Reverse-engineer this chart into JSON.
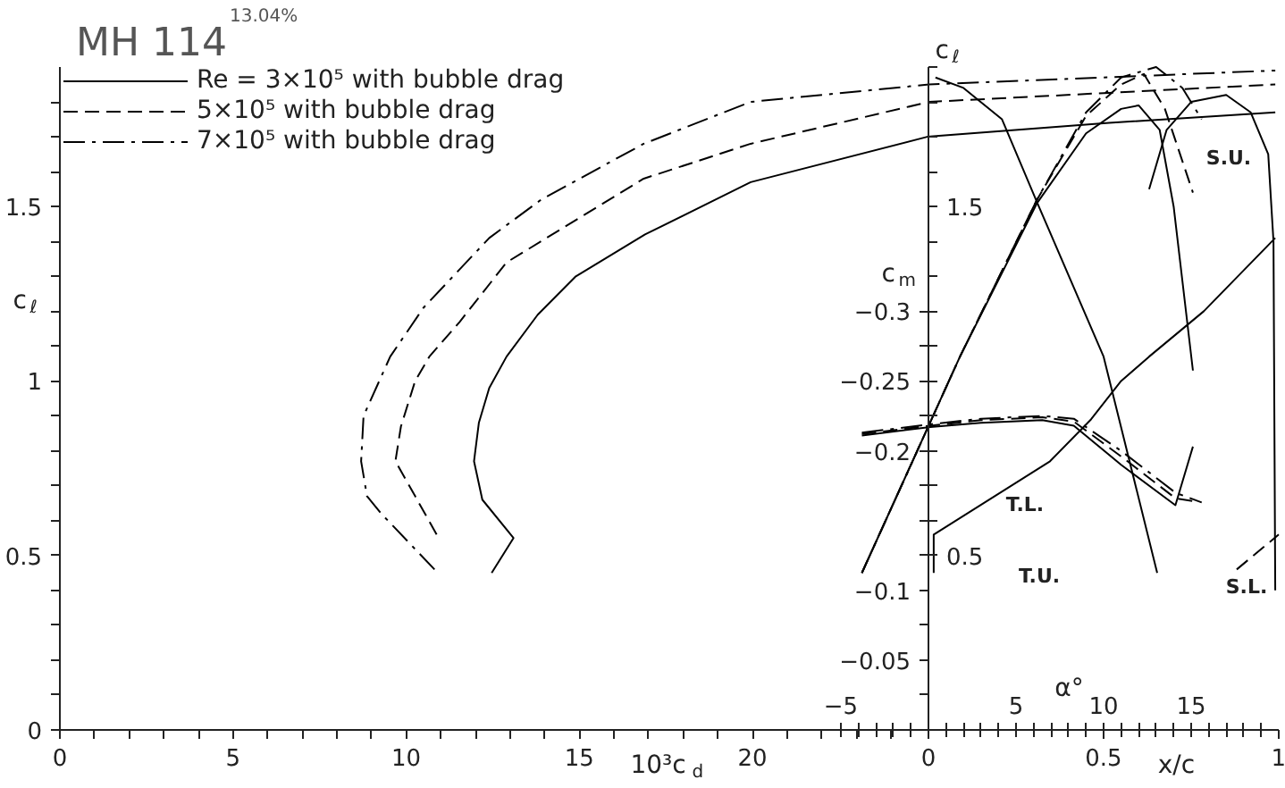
{
  "chart_data": [
    {
      "type": "line",
      "title": "MH 114",
      "subtitle": "13.04%",
      "xlabel": "10³c$_{d}$",
      "ylabel": "c$_{ℓ}$",
      "legend": "top left",
      "xlim": [
        0,
        35.2
      ],
      "xticks": [
        0,
        {
          "value": 1,
          "label": null
        },
        {
          "value": 2,
          "label": null
        },
        {
          "value": 3,
          "label": null
        },
        {
          "value": 4,
          "label": null
        },
        5,
        {
          "value": 6,
          "label": null
        },
        {
          "value": 7,
          "label": null
        },
        {
          "value": 8,
          "label": null
        },
        {
          "value": 9,
          "label": null
        },
        10,
        {
          "value": 11,
          "label": null
        },
        {
          "value": 12,
          "label": null
        },
        {
          "value": 13,
          "label": null
        },
        {
          "value": 14,
          "label": null
        },
        15,
        {
          "value": 16,
          "label": null
        },
        {
          "value": 17,
          "label": null
        },
        {
          "value": 18,
          "label": null
        },
        {
          "value": 19,
          "label": null
        },
        20,
        {
          "value": 21,
          "label": null
        },
        {
          "value": 22,
          "label": null
        },
        {
          "value": 23,
          "label": null
        },
        {
          "value": 24,
          "label": null
        }
      ],
      "ylim": [
        0,
        1.9
      ],
      "yticks": [
        0,
        {
          "value": 0.1,
          "label": null
        },
        {
          "value": 0.2,
          "label": null
        },
        {
          "value": 0.3,
          "label": null
        },
        {
          "value": 0.4,
          "label": null
        },
        0.5,
        {
          "value": 0.6,
          "label": null
        },
        {
          "value": 0.7,
          "label": null
        },
        {
          "value": 0.8,
          "label": null
        },
        {
          "value": 0.9,
          "label": null
        },
        1,
        {
          "value": 1.1,
          "label": null
        },
        {
          "value": 1.2,
          "label": null
        },
        {
          "value": 1.3,
          "label": null
        },
        {
          "value": 1.4,
          "label": null
        },
        1.5,
        {
          "value": 1.6,
          "label": null
        },
        {
          "value": 1.7,
          "label": null
        },
        {
          "value": 1.8,
          "label": null
        }
      ],
      "series": [
        {
          "name": "Re = 3×10⁵ with bubble drag",
          "color": "#000000",
          "line_style": "solid",
          "x": [
            12.47,
            13.1,
            12.2,
            11.96,
            12.1,
            12.4,
            12.9,
            13.8,
            14.9,
            16.9,
            19.95,
            25.05,
            30.3,
            35.1
          ],
          "values": [
            0.45,
            0.55,
            0.66,
            0.77,
            0.88,
            0.98,
            1.07,
            1.19,
            1.3,
            1.42,
            1.57,
            1.7,
            1.74,
            1.77
          ]
        },
        {
          "name": "5×10⁵ with bubble drag",
          "color": "#000000",
          "line_style": "dashed",
          "x": [
            10.88,
            10.26,
            9.69,
            9.85,
            10.26,
            10.67,
            11.55,
            12.9,
            16.86,
            19.95,
            25.1,
            35.1
          ],
          "values": [
            0.56,
            0.67,
            0.77,
            0.87,
            1.0,
            1.07,
            1.17,
            1.34,
            1.58,
            1.68,
            1.8,
            1.85
          ]
        },
        {
          "name": "7×10⁵ with bubble drag",
          "color": "#000000",
          "line_style": "dashdot",
          "x": [
            10.82,
            9.28,
            8.87,
            8.7,
            8.77,
            9.54,
            10.5,
            12.4,
            13.9,
            16.86,
            19.95,
            25.1,
            35.1
          ],
          "values": [
            0.46,
            0.62,
            0.67,
            0.77,
            0.9,
            1.07,
            1.21,
            1.41,
            1.52,
            1.68,
            1.8,
            1.85,
            1.89
          ]
        }
      ]
    },
    {
      "type": "line",
      "xlabel": "α°",
      "x2label": "x/c",
      "ylabel": "c$_{ℓ}$",
      "y2label": "c$_{m}$",
      "xlim": [
        -5,
        20
      ],
      "xticks": [
        {
          "value": -5,
          "label": "−5"
        },
        {
          "value": -4,
          "label": null
        },
        {
          "value": -3,
          "label": null
        },
        {
          "value": -2,
          "label": null
        },
        {
          "value": -1,
          "label": null
        },
        {
          "value": 0,
          "label": null
        },
        {
          "value": 1,
          "label": null
        },
        {
          "value": 2,
          "label": null
        },
        {
          "value": 3,
          "label": null
        },
        {
          "value": 4,
          "label": null
        },
        5,
        {
          "value": 6,
          "label": null
        },
        {
          "value": 7,
          "label": null
        },
        {
          "value": 8,
          "label": null
        },
        {
          "value": 9,
          "label": null
        },
        10,
        {
          "value": 11,
          "label": null
        },
        {
          "value": 12,
          "label": null
        },
        {
          "value": 13,
          "label": null
        },
        {
          "value": 14,
          "label": null
        },
        15,
        {
          "value": 16,
          "label": null
        },
        {
          "value": 17,
          "label": null
        },
        {
          "value": 18,
          "label": null
        },
        {
          "value": 19,
          "label": null
        }
      ],
      "x2lim": [
        0,
        1
      ],
      "x2ticks": [
        0,
        0.5,
        1
      ],
      "ylim": [
        0,
        1.9
      ],
      "yticks": [
        0.5,
        {
          "value": 0.6,
          "label": null
        },
        {
          "value": 0.7,
          "label": null
        },
        {
          "value": 0.8,
          "label": null
        },
        {
          "value": 0.9,
          "label": null
        },
        {
          "value": 1,
          "label": null
        },
        {
          "value": 1.1,
          "label": null
        },
        {
          "value": 1.2,
          "label": null
        },
        {
          "value": 1.3,
          "label": null
        },
        {
          "value": 1.4,
          "label": null
        },
        1.5,
        {
          "value": 1.6,
          "label": null
        },
        {
          "value": 1.7,
          "label": null
        },
        {
          "value": 1.8,
          "label": null
        },
        {
          "value": 1.9,
          "label": null
        }
      ],
      "y2lim": [
        0,
        -0.475
      ],
      "y2ticks": [
        {
          "value": -0.025,
          "label": null
        },
        {
          "value": -0.05,
          "label": "−0.05"
        },
        {
          "value": -0.075,
          "label": null
        },
        {
          "value": -0.1,
          "label": "−0.1"
        },
        {
          "value": -0.125,
          "label": null
        },
        {
          "value": -0.15,
          "label": null
        },
        {
          "value": -0.175,
          "label": null
        },
        {
          "value": -0.2,
          "label": "−0.2"
        },
        {
          "value": -0.225,
          "label": null
        },
        {
          "value": -0.25,
          "label": "−0.25"
        },
        {
          "value": -0.275,
          "label": null
        },
        {
          "value": -0.3,
          "label": "−0.3"
        }
      ],
      "series": [
        {
          "color": "#000000",
          "line_style": "solid",
          "x": [
            -3.8,
            1.8,
            6.2,
            9,
            11,
            12,
            13.2,
            14,
            15.1
          ],
          "values": [
            0.45,
            1.07,
            1.51,
            1.71,
            1.78,
            1.79,
            1.72,
            1.5,
            1.03
          ]
        },
        {
          "color": "#000000",
          "line_style": "dashed",
          "x": [
            -3.8,
            1.8,
            6.2,
            9,
            11,
            12.3,
            13.5,
            15.1
          ],
          "values": [
            0.45,
            1.07,
            1.52,
            1.76,
            1.85,
            1.88,
            1.78,
            1.54
          ]
        },
        {
          "color": "#000000",
          "line_style": "dashdot",
          "x": [
            -3.8,
            1.8,
            6.2,
            9,
            11,
            13,
            14.5,
            15.6
          ],
          "values": [
            0.45,
            1.07,
            1.52,
            1.77,
            1.87,
            1.9,
            1.84,
            1.75
          ]
        },
        {
          "axis": "y2",
          "color": "#000000",
          "line_style": "solid",
          "x": [
            -3.8,
            0.1,
            3,
            6.5,
            8.3,
            11,
            14.1,
            15.1
          ],
          "values": [
            -0.211,
            -0.217,
            -0.22,
            -0.222,
            -0.218,
            -0.19,
            -0.161,
            -0.203
          ]
        },
        {
          "axis": "y2",
          "color": "#000000",
          "line_style": "dashed",
          "x": [
            -3.8,
            0.1,
            3,
            6.5,
            8.3,
            11,
            14.1,
            15.1
          ],
          "values": [
            -0.212,
            -0.218,
            -0.222,
            -0.224,
            -0.221,
            -0.196,
            -0.166,
            -0.164
          ]
        },
        {
          "axis": "y2",
          "color": "#000000",
          "line_style": "dashdot",
          "x": [
            -3.8,
            0.1,
            3,
            6.5,
            8.3,
            11,
            14.1,
            15.6
          ],
          "values": [
            -0.213,
            -0.219,
            -0.223,
            -0.225,
            -0.223,
            -0.2,
            -0.17,
            -0.163
          ]
        },
        {
          "axis": "x2",
          "color": "#000000",
          "line_style": "solid",
          "x": [
            0.653,
            0.5,
            0.311,
            0.21,
            0.1,
            0.02
          ],
          "values": [
            0.45,
            1.07,
            1.51,
            1.75,
            1.84,
            1.87
          ]
        },
        {
          "axis": "x2",
          "color": "#000000",
          "line_style": "solid",
          "x": [
            0.015,
            0.015,
            0.347,
            0.464,
            0.55,
            0.63,
            0.786,
            0.99
          ],
          "values": [
            0.45,
            0.56,
            0.77,
            0.89,
            1.0,
            1.07,
            1.2,
            1.41
          ]
        },
        {
          "axis": "x2",
          "color": "#000000",
          "line_style": "solid",
          "x": [
            0.99,
            0.985,
            0.97,
            0.92,
            0.85,
            0.75,
            0.68,
            0.63
          ],
          "values": [
            0.4,
            1.4,
            1.65,
            1.77,
            1.82,
            1.8,
            1.72,
            1.55
          ]
        },
        {
          "axis": "x2",
          "color": "#000000",
          "line_style": "dashed",
          "x": [
            0.88,
            1.0
          ],
          "values": [
            0.46,
            0.56
          ]
        }
      ],
      "annotations": [
        "T.U.",
        "T.L.",
        "S.U.",
        "S.L."
      ]
    }
  ]
}
